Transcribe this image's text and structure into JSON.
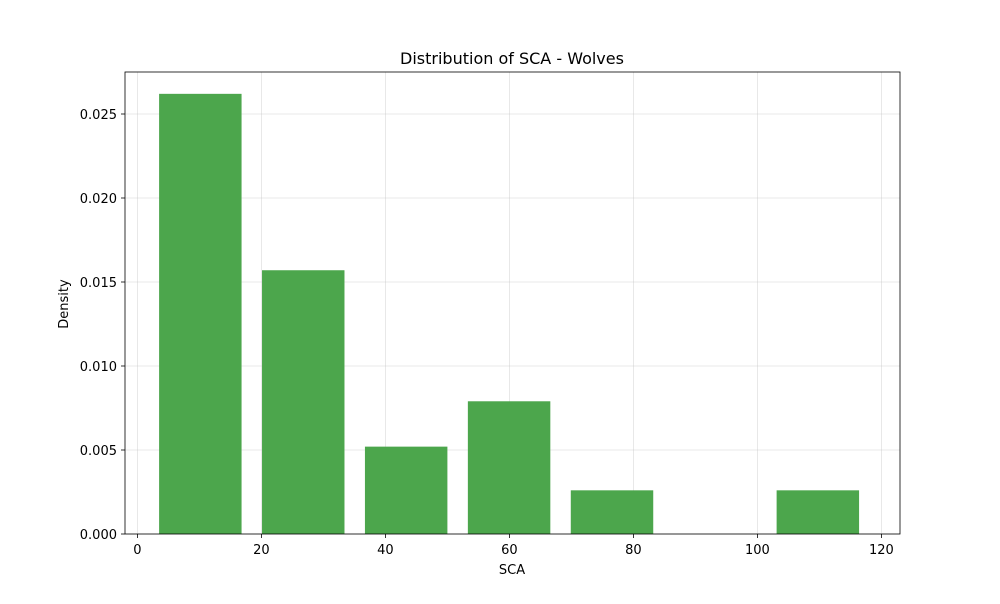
{
  "chart_data": {
    "type": "bar",
    "title": "Distribution of SCA - Wolves",
    "xlabel": "SCA",
    "ylabel": "Density",
    "xlim": [
      -2,
      123
    ],
    "ylim": [
      0,
      0.0275
    ],
    "grid": true,
    "bar_color": "#4ca64c",
    "bins": [
      {
        "start": 3.5,
        "end": 16.8,
        "value": 0.0262
      },
      {
        "start": 20.1,
        "end": 33.4,
        "value": 0.0157
      },
      {
        "start": 36.7,
        "end": 50.0,
        "value": 0.0052
      },
      {
        "start": 53.3,
        "end": 66.6,
        "value": 0.0079
      },
      {
        "start": 69.9,
        "end": 83.2,
        "value": 0.0026
      },
      {
        "start": 103.1,
        "end": 116.4,
        "value": 0.0026
      }
    ],
    "x_ticks": [
      {
        "value": 0,
        "label": "0"
      },
      {
        "value": 20,
        "label": "20"
      },
      {
        "value": 40,
        "label": "40"
      },
      {
        "value": 60,
        "label": "60"
      },
      {
        "value": 80,
        "label": "80"
      },
      {
        "value": 100,
        "label": "100"
      },
      {
        "value": 120,
        "label": "120"
      }
    ],
    "y_ticks": [
      {
        "value": 0,
        "label": "0.000"
      },
      {
        "value": 0.005,
        "label": "0.005"
      },
      {
        "value": 0.01,
        "label": "0.010"
      },
      {
        "value": 0.015,
        "label": "0.015"
      },
      {
        "value": 0.02,
        "label": "0.020"
      },
      {
        "value": 0.025,
        "label": "0.025"
      }
    ]
  }
}
